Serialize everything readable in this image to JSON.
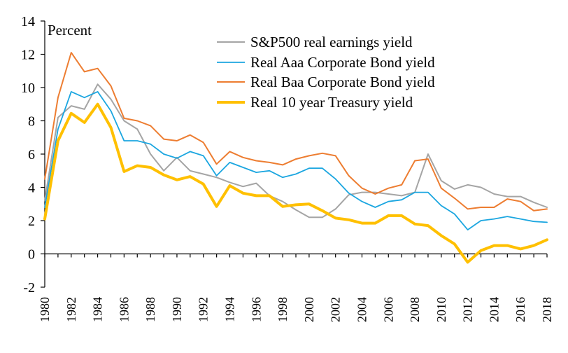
{
  "chart_data": {
    "type": "line",
    "title": "",
    "xlabel": "",
    "ylabel": "Percent",
    "ylim": [
      -2,
      14
    ],
    "yticks": [
      -2,
      0,
      2,
      4,
      6,
      8,
      10,
      12,
      14
    ],
    "xlim": [
      1980,
      2018
    ],
    "xticks": [
      1980,
      1982,
      1984,
      1986,
      1988,
      1990,
      1992,
      1994,
      1996,
      1998,
      2000,
      2002,
      2004,
      2006,
      2008,
      2010,
      2012,
      2014,
      2016,
      2018
    ],
    "grid": false,
    "legend_position": "top-right",
    "x": [
      1980,
      1981,
      1982,
      1983,
      1984,
      1985,
      1986,
      1987,
      1988,
      1989,
      1990,
      1991,
      1992,
      1993,
      1994,
      1995,
      1996,
      1997,
      1998,
      1999,
      2000,
      2001,
      2002,
      2003,
      2004,
      2005,
      2006,
      2007,
      2008,
      2009,
      2010,
      2011,
      2012,
      2013,
      2014,
      2015,
      2016,
      2017,
      2018
    ],
    "series": [
      {
        "name": "S&P500 real earnings yield",
        "color": "#a5a5a5",
        "values": [
          3.2,
          8.2,
          8.9,
          8.7,
          10.2,
          9.3,
          8.0,
          7.5,
          6.0,
          5.0,
          5.8,
          5.0,
          4.8,
          4.6,
          4.3,
          4.05,
          4.25,
          3.5,
          3.15,
          2.65,
          2.2,
          2.2,
          2.7,
          3.55,
          3.7,
          3.7,
          3.6,
          3.5,
          3.7,
          6.0,
          4.4,
          3.9,
          4.15,
          4.0,
          3.6,
          3.45,
          3.45,
          3.1,
          2.8
        ]
      },
      {
        "name": "Real Aaa Corporate Bond yield",
        "color": "#1ba6e0",
        "values": [
          2.8,
          7.5,
          9.75,
          9.4,
          9.75,
          8.6,
          6.8,
          6.8,
          6.6,
          6.0,
          5.75,
          6.15,
          5.9,
          4.7,
          5.5,
          5.2,
          4.9,
          5.0,
          4.6,
          4.8,
          5.15,
          5.15,
          4.5,
          3.65,
          3.15,
          2.8,
          3.15,
          3.25,
          3.7,
          3.7,
          2.9,
          2.4,
          1.45,
          2.0,
          2.1,
          2.25,
          2.1,
          1.95,
          1.9
        ]
      },
      {
        "name": "Real Baa Corporate Bond yield",
        "color": "#ed7d31",
        "values": [
          4.5,
          9.4,
          12.1,
          10.95,
          11.15,
          10.1,
          8.15,
          8.0,
          7.7,
          6.9,
          6.8,
          7.15,
          6.7,
          5.4,
          6.15,
          5.8,
          5.6,
          5.5,
          5.35,
          5.7,
          5.9,
          6.05,
          5.9,
          4.7,
          3.95,
          3.6,
          3.95,
          4.15,
          5.6,
          5.7,
          3.95,
          3.35,
          2.7,
          2.8,
          2.8,
          3.3,
          3.15,
          2.6,
          2.7
        ]
      },
      {
        "name": "Real 10 year Treasury yield",
        "color": "#ffc000",
        "values": [
          2.1,
          6.8,
          8.45,
          7.9,
          9.0,
          7.6,
          4.95,
          5.3,
          5.2,
          4.75,
          4.45,
          4.65,
          4.2,
          2.85,
          4.1,
          3.65,
          3.5,
          3.5,
          2.85,
          2.95,
          3.0,
          2.6,
          2.15,
          2.05,
          1.85,
          1.85,
          2.3,
          2.3,
          1.8,
          1.7,
          1.1,
          0.6,
          -0.5,
          0.2,
          0.5,
          0.5,
          0.3,
          0.5,
          0.85
        ]
      }
    ]
  }
}
